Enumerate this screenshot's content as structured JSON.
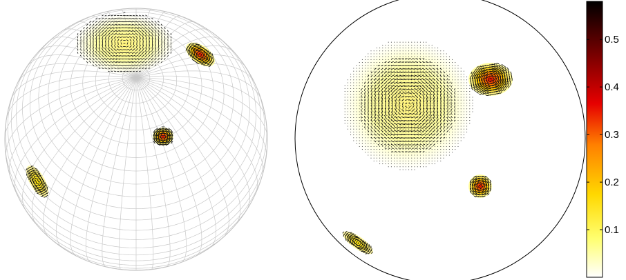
{
  "figure": {
    "colorbar": {
      "ticks": [
        "0.1",
        "0.2",
        "0.3",
        "0.4",
        "0.5"
      ],
      "tick_values": [
        0.1,
        0.2,
        0.3,
        0.4,
        0.5
      ],
      "range": [
        0.0,
        0.58
      ],
      "colormap": "hot (reversed): white-yellow-orange-red-black",
      "colors": [
        "#ffffff",
        "#ffff60",
        "#ffd000",
        "#ff8000",
        "#e00000",
        "#600000",
        "#000000"
      ]
    },
    "left_panel": {
      "view": "3D sphere with latitude/longitude mesh",
      "mesh_color": "#c8c8c8",
      "vortices": [
        {
          "name": "large-weak",
          "strength": 0.12
        },
        {
          "name": "upper-right",
          "strength": 0.45
        },
        {
          "name": "center",
          "strength": 0.5
        },
        {
          "name": "lower-left",
          "strength": 0.35
        }
      ]
    },
    "right_panel": {
      "view": "stereographic disk projection",
      "vortices": [
        {
          "name": "large-weak",
          "strength": 0.12
        },
        {
          "name": "upper-right",
          "strength": 0.45
        },
        {
          "name": "small-lower",
          "strength": 0.5
        },
        {
          "name": "edge-lower-left",
          "strength": 0.35
        }
      ]
    }
  }
}
